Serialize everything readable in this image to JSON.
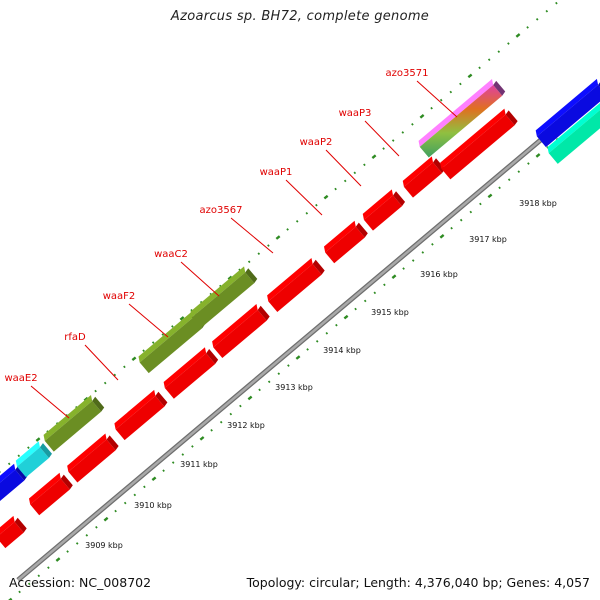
{
  "title": "Azoarcus sp. BH72, complete genome",
  "footer": {
    "accession": "Accession: NC_008702",
    "stats": "Topology: circular; Length: 4,376,040 bp; Genes: 4,057"
  },
  "colors": {
    "backbone": "#9a9a9a",
    "label": "#e00000",
    "leader": "#e00000",
    "tick": "#2e8b22",
    "cds_red": "#ee0000",
    "cds_green": "#6b8e23",
    "cds_blue": "#0a0ae0",
    "cds_cyan": "#20d0d8",
    "cds_aqua": "#00e8a8"
  },
  "gene_labels": [
    {
      "name": "azo3571"
    },
    {
      "name": "waaP3"
    },
    {
      "name": "waaP2"
    },
    {
      "name": "waaP1"
    },
    {
      "name": "azo3567"
    },
    {
      "name": "waaC2"
    },
    {
      "name": "waaF2"
    },
    {
      "name": "rfaD"
    },
    {
      "name": "waaE2"
    }
  ],
  "kbp_ticks": [
    {
      "label": "3909 kbp"
    },
    {
      "label": "3910 kbp"
    },
    {
      "label": "3911 kbp"
    },
    {
      "label": "3912 kbp"
    },
    {
      "label": "3913 kbp"
    },
    {
      "label": "3914 kbp"
    },
    {
      "label": "3915 kbp"
    },
    {
      "label": "3916 kbp"
    },
    {
      "label": "3917 kbp"
    },
    {
      "label": "3918 kbp"
    }
  ]
}
